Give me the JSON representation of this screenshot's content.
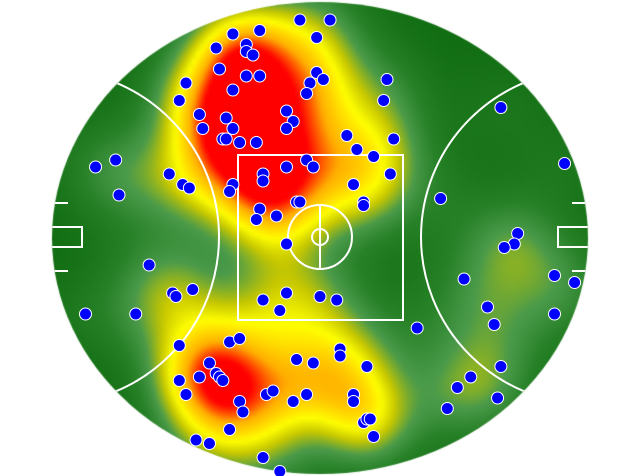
{
  "chart_data": {
    "type": "scatter",
    "overlay": "heatmap",
    "background": "football-oval",
    "colors": {
      "point_fill": "#0000ff",
      "point_stroke": "#ffffff",
      "field_lines": "#ffffff",
      "heat_low": "#126e12",
      "heat_mid": "#ffff00",
      "heat_high": "#ff0000"
    },
    "points": [
      [
        -6,
        62
      ],
      [
        3,
        62
      ],
      [
        -18,
        59
      ],
      [
        -26,
        58
      ],
      [
        -1,
        57
      ],
      [
        -31,
        54
      ],
      [
        -22,
        55
      ],
      [
        -22,
        53
      ],
      [
        -20,
        52
      ],
      [
        -30,
        48
      ],
      [
        -1,
        47
      ],
      [
        -22,
        46
      ],
      [
        -18,
        46
      ],
      [
        -3,
        44
      ],
      [
        1,
        45
      ],
      [
        20,
        45
      ],
      [
        -40,
        44
      ],
      [
        -26,
        42
      ],
      [
        -4,
        41
      ],
      [
        19,
        39
      ],
      [
        -42,
        39
      ],
      [
        -36,
        35
      ],
      [
        -10,
        36
      ],
      [
        54,
        37
      ],
      [
        -28,
        34
      ],
      [
        -8,
        33
      ],
      [
        -26,
        31
      ],
      [
        -10,
        31
      ],
      [
        -35,
        31
      ],
      [
        8,
        29
      ],
      [
        22,
        28
      ],
      [
        -29,
        28
      ],
      [
        -28,
        28
      ],
      [
        -24,
        27
      ],
      [
        -19,
        27
      ],
      [
        11,
        25
      ],
      [
        16,
        23
      ],
      [
        -61,
        22
      ],
      [
        -67,
        20
      ],
      [
        -4,
        22
      ],
      [
        -10,
        20
      ],
      [
        -2,
        20
      ],
      [
        -17,
        18
      ],
      [
        -45,
        18
      ],
      [
        21,
        18
      ],
      [
        73,
        21
      ],
      [
        -17,
        16
      ],
      [
        -41,
        15
      ],
      [
        -39,
        14
      ],
      [
        -26,
        15
      ],
      [
        -27,
        13
      ],
      [
        10,
        15
      ],
      [
        -60,
        12
      ],
      [
        36,
        11
      ],
      [
        13,
        10
      ],
      [
        13,
        9
      ],
      [
        -7,
        10
      ],
      [
        -6,
        10
      ],
      [
        -18,
        8
      ],
      [
        -13,
        6
      ],
      [
        -19,
        5
      ],
      [
        59,
        1
      ],
      [
        58,
        -2
      ],
      [
        55,
        -3
      ],
      [
        -10,
        -2
      ],
      [
        -51,
        -8
      ],
      [
        70,
        -11
      ],
      [
        76,
        -13
      ],
      [
        43,
        -12
      ],
      [
        -44,
        -16
      ],
      [
        -43,
        -17
      ],
      [
        -38,
        -15
      ],
      [
        -17,
        -18
      ],
      [
        -10,
        -16
      ],
      [
        -12,
        -21
      ],
      [
        0,
        -17
      ],
      [
        5,
        -18
      ],
      [
        -70,
        -22
      ],
      [
        -55,
        -22
      ],
      [
        50,
        -20
      ],
      [
        70,
        -22
      ],
      [
        52,
        -25
      ],
      [
        29,
        -26
      ],
      [
        -42,
        -31
      ],
      [
        -27,
        -30
      ],
      [
        -24,
        -29
      ],
      [
        6,
        -32
      ],
      [
        6,
        -34
      ],
      [
        -7,
        -35
      ],
      [
        -2,
        -36
      ],
      [
        14,
        -37
      ],
      [
        -33,
        -36
      ],
      [
        -42,
        -41
      ],
      [
        -36,
        -40
      ],
      [
        -31,
        -39
      ],
      [
        -30,
        -40
      ],
      [
        -29,
        -41
      ],
      [
        54,
        -37
      ],
      [
        45,
        -40
      ],
      [
        41,
        -43
      ],
      [
        -40,
        -45
      ],
      [
        -16,
        -45
      ],
      [
        -14,
        -44
      ],
      [
        -4,
        -45
      ],
      [
        -8,
        -47
      ],
      [
        10,
        -45
      ],
      [
        10,
        -47
      ],
      [
        -24,
        -47
      ],
      [
        -23,
        -50
      ],
      [
        53,
        -46
      ],
      [
        38,
        -49
      ],
      [
        13,
        -53
      ],
      [
        14,
        -52
      ],
      [
        15,
        -52
      ],
      [
        -27,
        -55
      ],
      [
        16,
        -57
      ],
      [
        -37,
        -58
      ],
      [
        -33,
        -59
      ],
      [
        -17,
        -63
      ],
      [
        -12,
        -67
      ]
    ]
  }
}
